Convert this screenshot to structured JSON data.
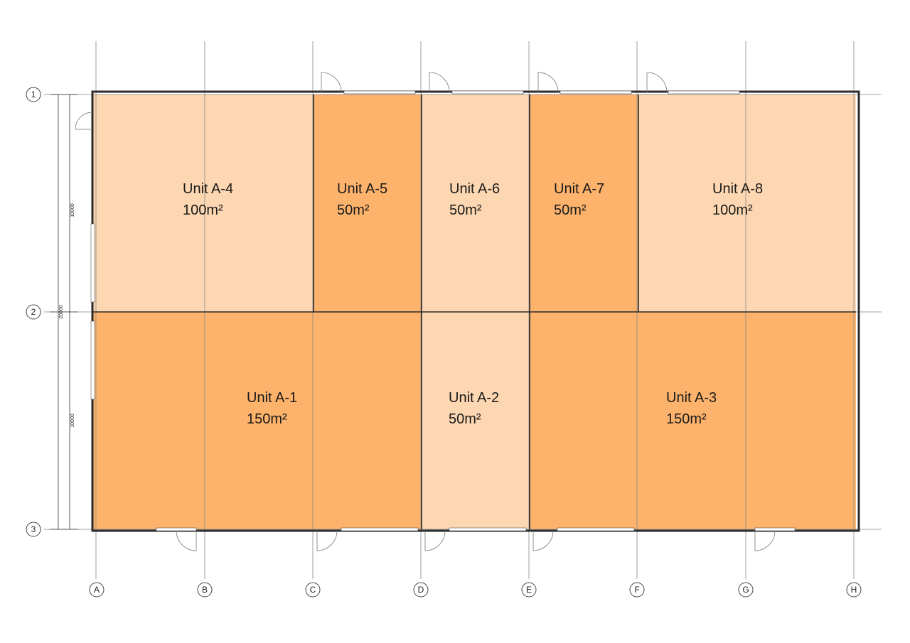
{
  "units": [
    {
      "id": "unit-a-4",
      "name": "Unit A-4",
      "area": "100m²",
      "color": "#fdd7b1"
    },
    {
      "id": "unit-a-5",
      "name": "Unit A-5",
      "area": "50m²",
      "color": "#fdb36c"
    },
    {
      "id": "unit-a-6",
      "name": "Unit A-6",
      "area": "50m²",
      "color": "#fdd7b1"
    },
    {
      "id": "unit-a-7",
      "name": "Unit A-7",
      "area": "50m²",
      "color": "#fdb36c"
    },
    {
      "id": "unit-a-8",
      "name": "Unit A-8",
      "area": "100m²",
      "color": "#fdd7b1"
    },
    {
      "id": "unit-a-1",
      "name": "Unit A-1",
      "area": "150m²",
      "color": "#fdb36c"
    },
    {
      "id": "unit-a-2",
      "name": "Unit A-2",
      "area": "50m²",
      "color": "#fdd7b1"
    },
    {
      "id": "unit-a-3",
      "name": "Unit A-3",
      "area": "150m²",
      "color": "#fdb36c"
    }
  ],
  "grid_columns": [
    "A",
    "B",
    "C",
    "D",
    "E",
    "F",
    "G",
    "H"
  ],
  "grid_rows": [
    "1",
    "2",
    "3"
  ],
  "dimensions": {
    "upper": "10000",
    "lower": "10000",
    "total": "20000"
  },
  "colors": {
    "light_unit": "#fdd7b1",
    "dark_unit": "#fdb36c",
    "wall": "#2b2b2b"
  }
}
